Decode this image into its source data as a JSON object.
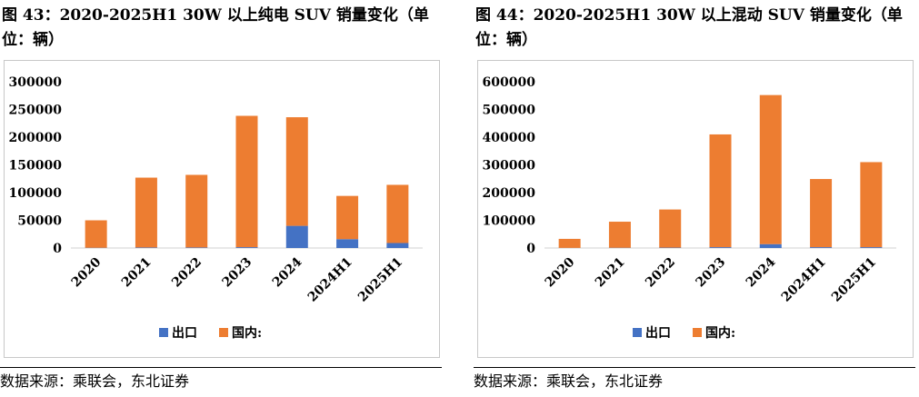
{
  "chart_data": [
    {
      "type": "bar",
      "stacked": true,
      "title": "图 43：2020-2025H1 30W 以上纯电 SUV 销量变化（单位：辆）",
      "categories": [
        "2020",
        "2021",
        "2022",
        "2023",
        "2024",
        "2024H1",
        "2025H1"
      ],
      "series": [
        {
          "name": "出口",
          "color": "#4472C4",
          "values": [
            500,
            1000,
            1000,
            1500,
            40000,
            16000,
            9000
          ]
        },
        {
          "name": "国内:",
          "color": "#ED7D31",
          "values": [
            49500,
            126000,
            131000,
            237000,
            196000,
            78000,
            105000
          ]
        }
      ],
      "ylim": [
        0,
        300000
      ],
      "yticks": [
        0,
        50000,
        100000,
        150000,
        200000,
        250000,
        300000
      ],
      "legend": "bottom",
      "grid": false,
      "source": "数据来源：乘联会，东北证券"
    },
    {
      "type": "bar",
      "stacked": true,
      "title": "图 44：2020-2025H1 30W 以上混动 SUV 销量变化（单位：辆）",
      "categories": [
        "2020",
        "2021",
        "2022",
        "2023",
        "2024",
        "2024H1",
        "2025H1"
      ],
      "series": [
        {
          "name": "出口",
          "color": "#4472C4",
          "values": [
            500,
            1000,
            1500,
            3000,
            14000,
            3000,
            3000
          ]
        },
        {
          "name": "国内:",
          "color": "#ED7D31",
          "values": [
            32500,
            94000,
            137500,
            407000,
            538000,
            246000,
            307000
          ]
        }
      ],
      "ylim": [
        0,
        600000
      ],
      "yticks": [
        0,
        100000,
        200000,
        300000,
        400000,
        500000,
        600000
      ],
      "legend": "bottom",
      "grid": false,
      "source": "数据来源：乘联会，东北证券"
    }
  ]
}
